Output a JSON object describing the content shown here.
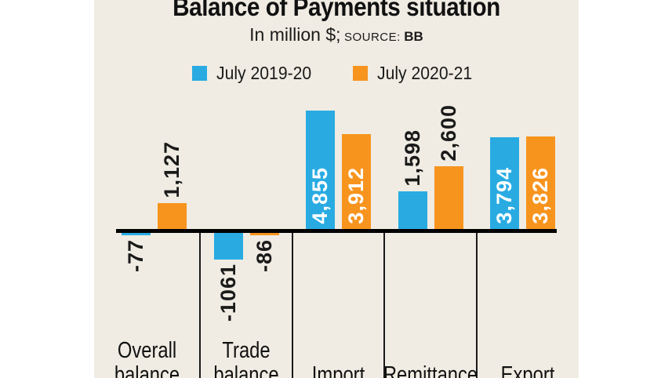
{
  "title": "Balance of Payments situation",
  "subtitle": {
    "unit_text": "In million $;",
    "source_label": "SOURCE:",
    "source_value": "BB"
  },
  "legend": {
    "items": [
      {
        "label": "July 2019-20",
        "color": "#29ABE2"
      },
      {
        "label": "July 2020-21",
        "color": "#F7941E"
      }
    ]
  },
  "colors": {
    "panel_background": "#F0ECE3",
    "page_background": "#FFFFFF",
    "axis": "#000000",
    "text": "#1A1A1A",
    "inside_bar_label": "#FFFFFF",
    "series_blue": "#29ABE2",
    "series_orange": "#F7941E"
  },
  "chart_data": {
    "type": "bar",
    "title": "Balance of Payments situation",
    "unit": "million $",
    "source": "BB",
    "legend_position": "top",
    "grid": false,
    "categories": [
      "Overall balance",
      "Trade balance",
      "Import",
      "Remittance",
      "Export"
    ],
    "category_label_lines": [
      [
        "Overall",
        "balance"
      ],
      [
        "Trade",
        "balance"
      ],
      [
        "Import"
      ],
      [
        "Remittance"
      ],
      [
        "Export"
      ]
    ],
    "series": [
      {
        "name": "July 2019-20",
        "color": "#29ABE2",
        "values": [
          -77,
          -1061,
          4855,
          1598,
          3794
        ],
        "labels": [
          "-77",
          "-1061",
          "4,855",
          "1,598",
          "3,794"
        ]
      },
      {
        "name": "July 2020-21",
        "color": "#F7941E",
        "values": [
          1127,
          -86,
          3912,
          2600,
          3826
        ],
        "labels": [
          "1,127",
          "-86",
          "3,912",
          "2,600",
          "3,826"
        ]
      }
    ],
    "ylim": [
      -1200,
      5000
    ],
    "baseline": 0
  }
}
